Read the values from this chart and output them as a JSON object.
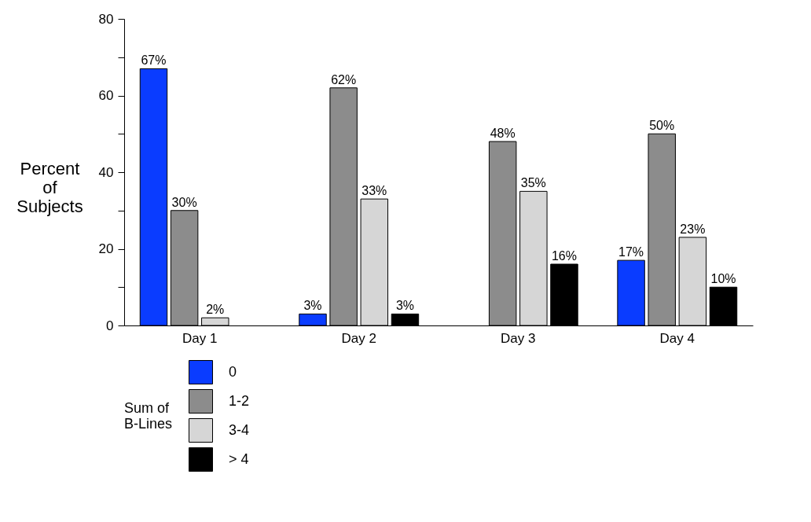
{
  "chart_data": {
    "type": "bar",
    "ylabel": "Percent\nof\nSubjects",
    "legend_title": "Sum of\nB-Lines",
    "categories": [
      "Day 1",
      "Day 2",
      "Day 3",
      "Day 4"
    ],
    "series": [
      {
        "name": "0",
        "color": "#0a3cff",
        "values": [
          67,
          3,
          null,
          17
        ],
        "value_labels": [
          "67%",
          "3%",
          null,
          "17%"
        ]
      },
      {
        "name": "1-2",
        "color": "#8c8c8c",
        "values": [
          30,
          62,
          48,
          50
        ],
        "value_labels": [
          "30%",
          "62%",
          "48%",
          "50%"
        ]
      },
      {
        "name": "3-4",
        "color": "#d6d6d6",
        "values": [
          2,
          33,
          35,
          23
        ],
        "value_labels": [
          "2%",
          "33%",
          "35%",
          "23%"
        ]
      },
      {
        "name": "> 4",
        "color": "#000000",
        "values": [
          null,
          3,
          16,
          10
        ],
        "value_labels": [
          null,
          "3%",
          "16%",
          "10%"
        ]
      }
    ],
    "ylim": [
      0,
      80
    ],
    "yticks": [
      0,
      {
        "value": 10,
        "label": null
      },
      20,
      {
        "value": 30,
        "label": null
      },
      40,
      {
        "value": 50,
        "label": null
      },
      60,
      {
        "value": 70,
        "label": null
      },
      80
    ],
    "grid": false,
    "legend": "bottom"
  }
}
